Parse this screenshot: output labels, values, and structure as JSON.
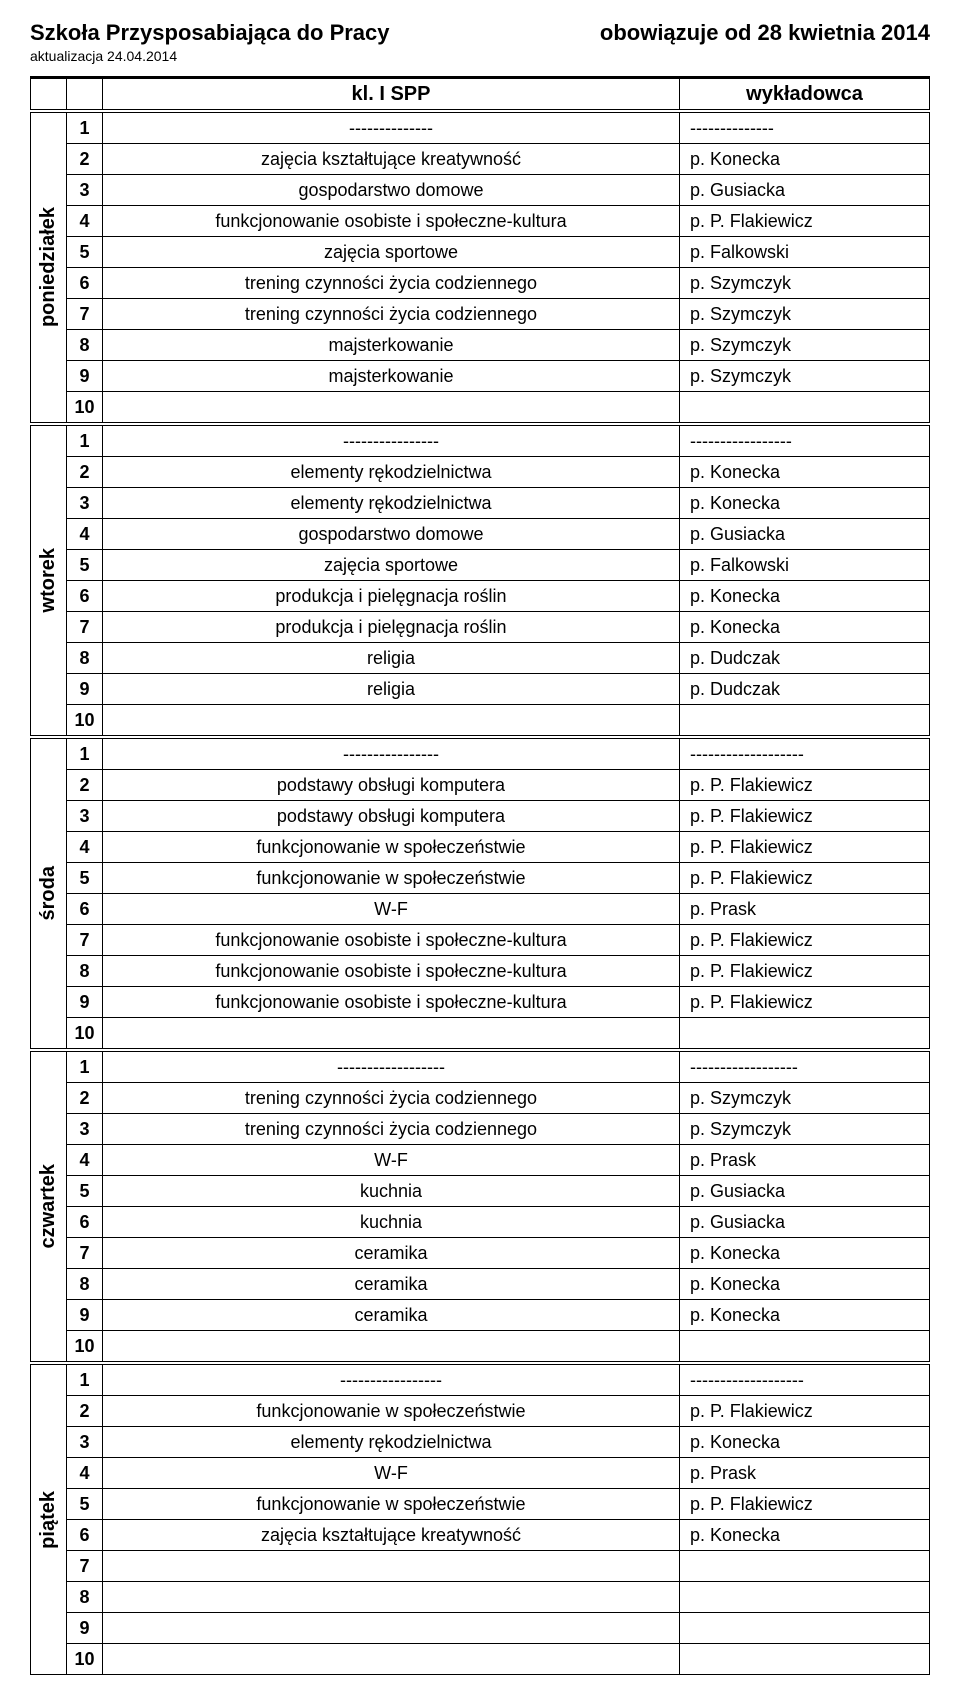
{
  "header": {
    "title_left": "Szkoła Przysposabiająca do Pracy",
    "title_right": "obowiązuje od 28 kwietnia 2014",
    "subtitle": "aktualizacja 24.04.2014"
  },
  "columns": {
    "subject": "kl. I SPP",
    "lecturer": "wykładowca"
  },
  "days": [
    {
      "name": "poniedziałek",
      "rows": [
        {
          "n": "1",
          "s": "--------------",
          "l": "--------------"
        },
        {
          "n": "2",
          "s": "zajęcia kształtujące kreatywność",
          "l": "p. Konecka"
        },
        {
          "n": "3",
          "s": "gospodarstwo domowe",
          "l": "p. Gusiacka"
        },
        {
          "n": "4",
          "s": "funkcjonowanie osobiste i społeczne-kultura",
          "l": "p. P. Flakiewicz"
        },
        {
          "n": "5",
          "s": "zajęcia sportowe",
          "l": "p. Falkowski"
        },
        {
          "n": "6",
          "s": "trening czynności życia codziennego",
          "l": "p. Szymczyk"
        },
        {
          "n": "7",
          "s": "trening czynności życia codziennego",
          "l": "p. Szymczyk"
        },
        {
          "n": "8",
          "s": "majsterkowanie",
          "l": "p. Szymczyk"
        },
        {
          "n": "9",
          "s": "majsterkowanie",
          "l": "p. Szymczyk"
        },
        {
          "n": "10",
          "s": "",
          "l": ""
        }
      ]
    },
    {
      "name": "wtorek",
      "rows": [
        {
          "n": "1",
          "s": "----------------",
          "l": "-----------------"
        },
        {
          "n": "2",
          "s": "elementy rękodzielnictwa",
          "l": "p. Konecka"
        },
        {
          "n": "3",
          "s": "elementy rękodzielnictwa",
          "l": "p. Konecka"
        },
        {
          "n": "4",
          "s": "gospodarstwo domowe",
          "l": "p. Gusiacka"
        },
        {
          "n": "5",
          "s": "zajęcia sportowe",
          "l": "p. Falkowski"
        },
        {
          "n": "6",
          "s": "produkcja i pielęgnacja roślin",
          "l": "p. Konecka"
        },
        {
          "n": "7",
          "s": "produkcja i pielęgnacja roślin",
          "l": "p. Konecka"
        },
        {
          "n": "8",
          "s": "religia",
          "l": "p. Dudczak"
        },
        {
          "n": "9",
          "s": "religia",
          "l": "p. Dudczak"
        },
        {
          "n": "10",
          "s": "",
          "l": ""
        }
      ]
    },
    {
      "name": "środa",
      "rows": [
        {
          "n": "1",
          "s": "----------------",
          "l": "-------------------"
        },
        {
          "n": "2",
          "s": "podstawy obsługi komputera",
          "l": "p. P. Flakiewicz"
        },
        {
          "n": "3",
          "s": "podstawy obsługi komputera",
          "l": "p. P. Flakiewicz"
        },
        {
          "n": "4",
          "s": "funkcjonowanie w społeczeństwie",
          "l": "p. P. Flakiewicz"
        },
        {
          "n": "5",
          "s": "funkcjonowanie w społeczeństwie",
          "l": "p. P. Flakiewicz"
        },
        {
          "n": "6",
          "s": "W-F",
          "l": "p. Prask"
        },
        {
          "n": "7",
          "s": "funkcjonowanie osobiste i społeczne-kultura",
          "l": "p. P. Flakiewicz"
        },
        {
          "n": "8",
          "s": "funkcjonowanie osobiste i społeczne-kultura",
          "l": "p. P. Flakiewicz"
        },
        {
          "n": "9",
          "s": "funkcjonowanie osobiste i społeczne-kultura",
          "l": "p. P. Flakiewicz"
        },
        {
          "n": "10",
          "s": "",
          "l": ""
        }
      ]
    },
    {
      "name": "czwartek",
      "rows": [
        {
          "n": "1",
          "s": "------------------",
          "l": "------------------"
        },
        {
          "n": "2",
          "s": "trening czynności życia codziennego",
          "l": "p. Szymczyk"
        },
        {
          "n": "3",
          "s": "trening czynności życia codziennego",
          "l": "p. Szymczyk"
        },
        {
          "n": "4",
          "s": "W-F",
          "l": "p. Prask"
        },
        {
          "n": "5",
          "s": "kuchnia",
          "l": "p. Gusiacka"
        },
        {
          "n": "6",
          "s": "kuchnia",
          "l": "p. Gusiacka"
        },
        {
          "n": "7",
          "s": "ceramika",
          "l": "p. Konecka"
        },
        {
          "n": "8",
          "s": "ceramika",
          "l": "p. Konecka"
        },
        {
          "n": "9",
          "s": "ceramika",
          "l": "p. Konecka"
        },
        {
          "n": "10",
          "s": "",
          "l": ""
        }
      ]
    },
    {
      "name": "piątek",
      "rows": [
        {
          "n": "1",
          "s": "-----------------",
          "l": "-------------------"
        },
        {
          "n": "2",
          "s": "funkcjonowanie w społeczeństwie",
          "l": "p. P. Flakiewicz"
        },
        {
          "n": "3",
          "s": "elementy rękodzielnictwa",
          "l": "p. Konecka"
        },
        {
          "n": "4",
          "s": "W-F",
          "l": "p. Prask"
        },
        {
          "n": "5",
          "s": "funkcjonowanie w społeczeństwie",
          "l": "p. P. Flakiewicz"
        },
        {
          "n": "6",
          "s": "zajęcia kształtujące kreatywność",
          "l": "p. Konecka"
        },
        {
          "n": "7",
          "s": "",
          "l": ""
        },
        {
          "n": "8",
          "s": "",
          "l": ""
        },
        {
          "n": "9",
          "s": "",
          "l": ""
        },
        {
          "n": "10",
          "s": "",
          "l": ""
        }
      ]
    }
  ]
}
